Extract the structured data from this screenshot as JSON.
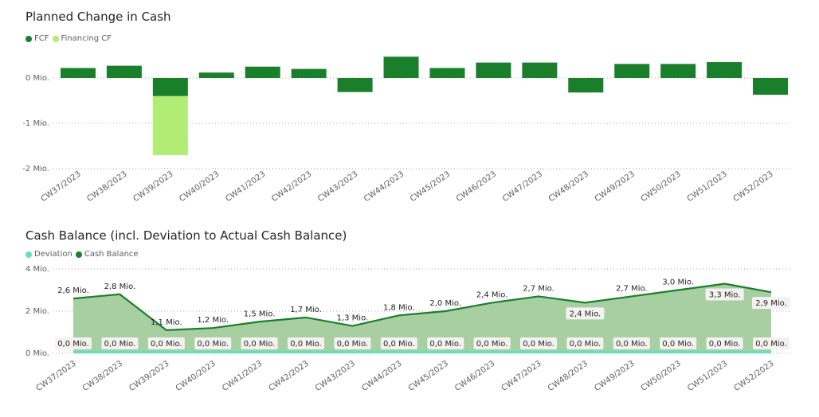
{
  "colors": {
    "fcf": "#1a7f2a",
    "financing": "#b1ec75",
    "deviation": "#5fe0c0",
    "cash_balance_line": "#1a7f2a",
    "cash_balance_area": "#a8cfa2",
    "gridline": "#a6a6a6",
    "axis_text": "#605e5c",
    "label_box": "#f3f2f1"
  },
  "chart_data": [
    {
      "type": "bar",
      "title": "Planned Change in Cash",
      "legend": [
        "FCF",
        "Financing CF"
      ],
      "categories": [
        "CW37/2023",
        "CW38/2023",
        "CW39/2023",
        "CW40/2023",
        "CW41/2023",
        "CW42/2023",
        "CW43/2023",
        "CW44/2023",
        "CW45/2023",
        "CW46/2023",
        "CW47/2023",
        "CW48/2023",
        "CW49/2023",
        "CW50/2023",
        "CW51/2023",
        "CW52/2023"
      ],
      "series": [
        {
          "name": "FCF",
          "values": [
            0.22,
            0.27,
            -0.4,
            0.12,
            0.25,
            0.2,
            -0.31,
            0.47,
            0.22,
            0.34,
            0.34,
            -0.32,
            0.31,
            0.31,
            0.35,
            -0.37
          ]
        },
        {
          "name": "Financing CF",
          "values": [
            0,
            0,
            -1.3,
            0,
            0,
            0,
            0,
            0,
            0,
            0,
            0,
            0,
            0,
            0,
            0,
            0
          ]
        }
      ],
      "stacked": true,
      "y_ticks": [
        {
          "value": 0,
          "label": "0 Mio."
        },
        {
          "value": -1,
          "label": "-1 Mio."
        },
        {
          "value": -2,
          "label": "-2 Mio."
        }
      ],
      "ylim": [
        -2,
        0.5
      ],
      "grid": true,
      "legend_position": "top-left"
    },
    {
      "type": "area",
      "title": "Cash Balance (incl. Deviation to Actual Cash Balance)",
      "legend": [
        "Deviation",
        "Cash Balance"
      ],
      "categories": [
        "CW37/2023",
        "CW38/2023",
        "CW39/2023",
        "CW40/2023",
        "CW41/2023",
        "CW42/2023",
        "CW43/2023",
        "CW44/2023",
        "CW45/2023",
        "CW46/2023",
        "CW47/2023",
        "CW48/2023",
        "CW49/2023",
        "CW50/2023",
        "CW51/2023",
        "CW52/2023"
      ],
      "series": [
        {
          "name": "Cash Balance",
          "values": [
            2.6,
            2.8,
            1.1,
            1.2,
            1.5,
            1.7,
            1.3,
            1.8,
            2.0,
            2.4,
            2.7,
            2.4,
            2.7,
            3.0,
            3.3,
            2.9
          ],
          "labels": [
            "2,6 Mio.",
            "2,8 Mio.",
            "1,1 Mio.",
            "1,2 Mio.",
            "1,5 Mio.",
            "1,7 Mio.",
            "1,3 Mio.",
            "1,8 Mio.",
            "2,0 Mio.",
            "2,4 Mio.",
            "2,7 Mio.",
            "2,4 Mio.",
            "2,7 Mio.",
            "3,0 Mio.",
            "3,3 Mio.",
            "2,9 Mio."
          ]
        },
        {
          "name": "Deviation",
          "values": [
            0,
            0,
            0,
            0,
            0,
            0,
            0,
            0,
            0,
            0,
            0,
            0,
            0,
            0,
            0,
            0
          ],
          "labels": [
            "0,0 Mio.",
            "0,0 Mio.",
            "0,0 Mio.",
            "0,0 Mio.",
            "0,0 Mio.",
            "0,0 Mio.",
            "0,0 Mio.",
            "0,0 Mio.",
            "0,0 Mio.",
            "0,0 Mio.",
            "0,0 Mio.",
            "0,0 Mio.",
            "0,0 Mio.",
            "0,0 Mio.",
            "0,0 Mio.",
            "0,0 Mio."
          ]
        }
      ],
      "y_ticks": [
        {
          "value": 0,
          "label": "0 Mio."
        },
        {
          "value": 2,
          "label": "2 Mio."
        },
        {
          "value": 4,
          "label": "4 Mio."
        }
      ],
      "ylim": [
        0,
        4
      ],
      "grid": true,
      "legend_position": "top-left"
    }
  ]
}
